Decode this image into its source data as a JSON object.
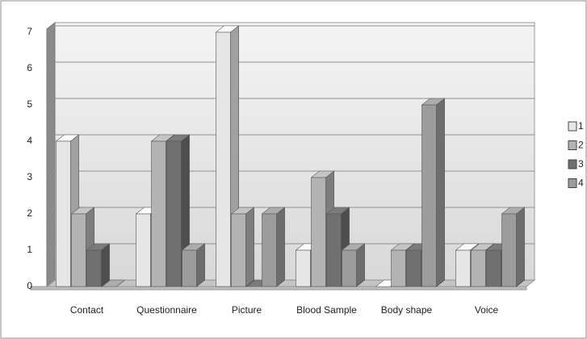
{
  "chart_data": {
    "type": "bar3d",
    "categories": [
      "Contact",
      "Questionnaire",
      "Picture",
      "Blood Sample",
      "Body shape",
      "Voice"
    ],
    "series": [
      {
        "name": "1",
        "color": "#e6e6e6",
        "values": [
          4,
          2,
          7,
          1,
          0,
          1
        ]
      },
      {
        "name": "2",
        "color": "#b3b3b3",
        "values": [
          2,
          4,
          2,
          3,
          1,
          1
        ]
      },
      {
        "name": "3",
        "color": "#707070",
        "values": [
          1,
          4,
          0,
          2,
          1,
          1
        ]
      },
      {
        "name": "4",
        "color": "#9c9c9c",
        "values": [
          0,
          1,
          2,
          1,
          5,
          2
        ]
      }
    ],
    "ylim": [
      0,
      7
    ],
    "yticks": [
      0,
      1,
      2,
      3,
      4,
      5,
      6,
      7
    ],
    "grid": true,
    "legend": "right"
  }
}
